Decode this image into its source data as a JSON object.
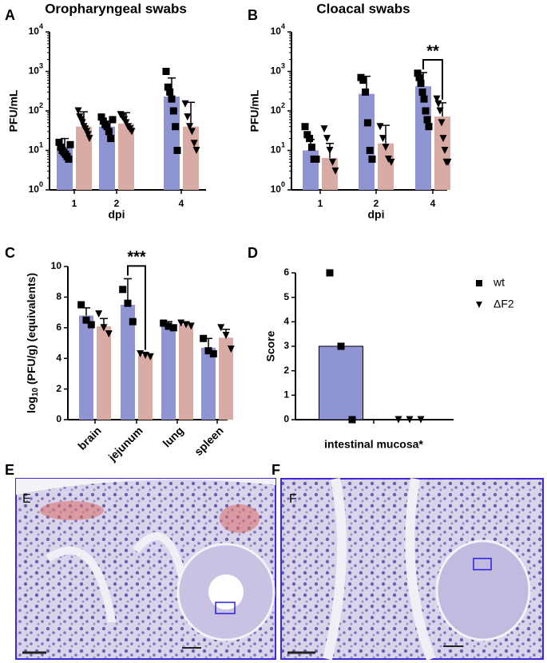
{
  "chart_data": [
    {
      "type": "bar",
      "panel_label": "A",
      "title": "Oropharyngeal swabs",
      "x_label": "dpi",
      "y_label": "PFU/mL",
      "log_scale": true,
      "ylim": [
        1,
        10000
      ],
      "yticks": [
        {
          "value": 1,
          "label": "10",
          "exp": "0"
        },
        {
          "value": 10,
          "label": "10",
          "exp": "1"
        },
        {
          "value": 100,
          "label": "10",
          "exp": "2"
        },
        {
          "value": 1000,
          "label": "10",
          "exp": "3"
        },
        {
          "value": 10000,
          "label": "10",
          "exp": "4"
        }
      ],
      "categories": [
        "1",
        "2",
        "4"
      ],
      "series": [
        {
          "color": "#8f95d3",
          "marker": "square",
          "values": [
            12,
            40,
            230
          ],
          "error_upper": [
            20,
            55,
            680
          ],
          "points": [
            [
              16,
              12,
              10,
              9,
              8,
              7,
              6,
              14
            ],
            [
              70,
              55,
              45,
              40,
              30,
              20,
              60
            ],
            [
              1000,
              400,
              300,
              200,
              100,
              40,
              10
            ]
          ]
        },
        {
          "color": "#d8aba5",
          "marker": "triangle",
          "values": [
            40,
            48,
            40
          ],
          "error_upper": [
            95,
            90,
            165
          ],
          "points": [
            [
              100,
              70,
              60,
              50,
              40,
              35,
              30,
              25,
              20
            ],
            [
              80,
              70,
              60,
              50,
              40,
              35,
              30
            ],
            [
              150,
              70,
              40,
              30,
              15,
              10
            ]
          ]
        }
      ]
    },
    {
      "type": "bar",
      "panel_label": "B",
      "title": "Cloacal swabs",
      "x_label": "dpi",
      "y_label": "PFU/mL",
      "log_scale": true,
      "ylim": [
        1,
        10000
      ],
      "yticks": [
        {
          "value": 1,
          "label": "10",
          "exp": "0"
        },
        {
          "value": 10,
          "label": "10",
          "exp": "1"
        },
        {
          "value": 100,
          "label": "10",
          "exp": "2"
        },
        {
          "value": 1000,
          "label": "10",
          "exp": "3"
        },
        {
          "value": 10000,
          "label": "10",
          "exp": "4"
        }
      ],
      "categories": [
        "1",
        "2",
        "4"
      ],
      "series": [
        {
          "color": "#8f95d3",
          "marker": "square",
          "values": [
            10,
            270,
            420
          ],
          "error_upper": [
            19,
            750,
            930
          ],
          "points": [
            [
              40,
              25,
              20,
              12,
              6,
              6
            ],
            [
              700,
              600,
              300,
              50,
              10,
              6
            ],
            [
              900,
              700,
              500,
              300,
              200,
              100,
              60,
              40
            ]
          ]
        },
        {
          "color": "#d8aba5",
          "marker": "triangle",
          "values": [
            6.4,
            15,
            72
          ],
          "error_upper": [
            15,
            43,
            160
          ],
          "points": [
            [
              35,
              20,
              10,
              5,
              3
            ],
            [
              40,
              20,
              12,
              6,
              5
            ],
            [
              200,
              150,
              100,
              50,
              20,
              10,
              5,
              5
            ]
          ]
        }
      ],
      "significance": [
        {
          "label": "**",
          "category": 2
        }
      ]
    },
    {
      "type": "bar",
      "panel_label": "C",
      "y_label": {
        "base": "log",
        "sub": "10",
        "rest": " (PFU/g) (equivalents)"
      },
      "ylim": [
        0,
        10
      ],
      "yticks": [
        0,
        2,
        4,
        6,
        8,
        10
      ],
      "categories": [
        "brain",
        "jejunum",
        "lung",
        "spleen"
      ],
      "series": [
        {
          "color": "#8f95d3",
          "marker": "square",
          "values": [
            6.8,
            7.5,
            6.1,
            4.7
          ],
          "error_upper": [
            7.3,
            9.2,
            6.4,
            5.3
          ],
          "points": [
            [
              7.5,
              6.5,
              6.2
            ],
            [
              8.5,
              7.6,
              6.4
            ],
            [
              6.3,
              6.1,
              6.0
            ],
            [
              5.3,
              4.5,
              4.3
            ]
          ]
        },
        {
          "color": "#d8aba5",
          "marker": "triangle",
          "values": [
            6.1,
            4.2,
            6.2,
            5.35
          ],
          "error_upper": [
            6.6,
            4.35,
            6.35,
            5.9
          ],
          "points": [
            [
              6.9,
              6.0,
              5.6
            ],
            [
              4.3,
              4.2,
              4.1
            ],
            [
              6.3,
              6.2,
              6.1
            ],
            [
              6.0,
              5.5,
              4.6
            ]
          ]
        }
      ],
      "significance": [
        {
          "label": "***",
          "category": 1
        }
      ]
    },
    {
      "type": "bar",
      "panel_label": "D",
      "y_label": "Score",
      "ylim": [
        0,
        6
      ],
      "yticks": [
        0,
        1,
        2,
        3,
        4,
        5,
        6
      ],
      "categories": [
        "intestinal mucosa*"
      ],
      "series": [
        {
          "name": "wt",
          "color": "#8f95d3",
          "marker": "square",
          "values": [
            3
          ],
          "points": [
            [
              6,
              3,
              0
            ]
          ]
        },
        {
          "name": "ΔF2",
          "color": "#d8aba5",
          "marker": "triangle",
          "values": [
            0
          ],
          "points": [
            [
              0,
              0,
              0
            ]
          ]
        }
      ],
      "legend": "right"
    }
  ],
  "images": [
    {
      "panel_label": "E",
      "inner_label": "E"
    },
    {
      "panel_label": "F",
      "inner_label": "F"
    }
  ]
}
